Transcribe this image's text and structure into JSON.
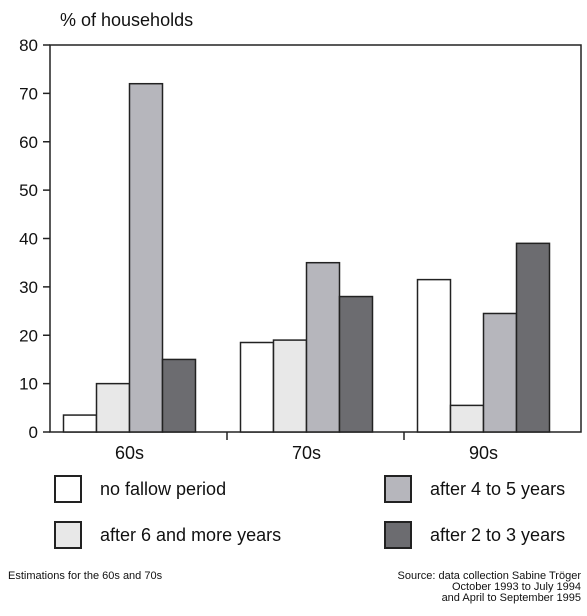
{
  "chart_data": {
    "type": "bar",
    "ylabel": "% of households",
    "ylim": [
      0,
      80
    ],
    "yticks": [
      0,
      10,
      20,
      30,
      40,
      50,
      60,
      70,
      80
    ],
    "grid": false,
    "categories": [
      "60s",
      "70s",
      "90s"
    ],
    "series": [
      {
        "name": "no fallow period",
        "color": "#ffffff",
        "values": [
          3.5,
          18.5,
          31.5
        ]
      },
      {
        "name": "after 6 and more years",
        "color": "#e8e8e8",
        "values": [
          10,
          19,
          5.5
        ]
      },
      {
        "name": "after 4 to 5 years",
        "color": "#b6b6bc",
        "values": [
          72,
          35,
          24.5
        ]
      },
      {
        "name": "after 2 to 3 years",
        "color": "#6c6c70",
        "values": [
          15,
          28,
          39
        ]
      }
    ]
  },
  "notes": {
    "left": "Estimations for the 60s and 70s",
    "source_lines": [
      "Source: data collection Sabine Tröger",
      "October 1993 to July 1994",
      "and April to September 1995"
    ]
  }
}
